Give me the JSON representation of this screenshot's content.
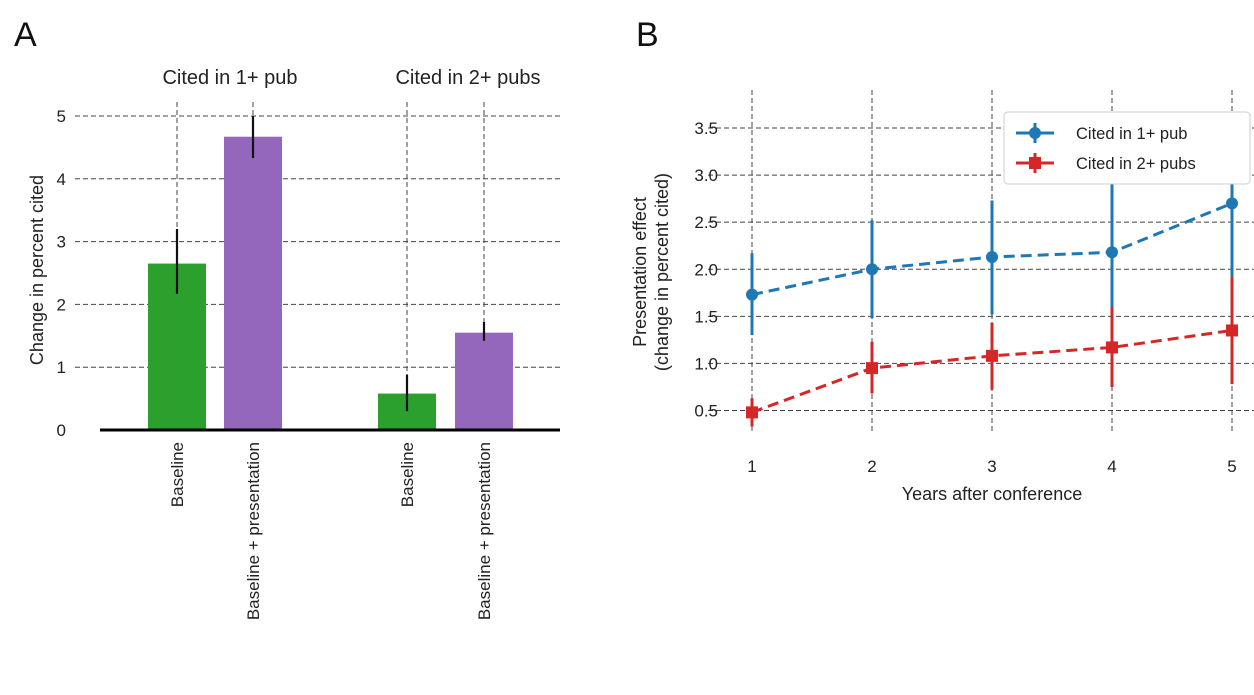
{
  "panel_a": {
    "letter": "A",
    "ylabel": "Change in percent cited",
    "yticks": [
      "0",
      "1",
      "2",
      "3",
      "4",
      "5"
    ]
  },
  "panel_b": {
    "letter": "B",
    "ylabel_line1": "Presentation effect",
    "ylabel_line2": "(change in percent cited)",
    "xlabel": "Years after conference",
    "xticks": [
      "1",
      "2",
      "3",
      "4",
      "5"
    ],
    "yticks": [
      "0.5",
      "1.0",
      "1.5",
      "2.0",
      "2.5",
      "3.0",
      "3.5"
    ]
  },
  "chart_data": [
    {
      "type": "bar",
      "panel": "A",
      "groups": [
        {
          "title": "Cited in 1+ pub",
          "categories": [
            "Baseline",
            "Baseline + presentation"
          ],
          "values": [
            2.65,
            4.67
          ],
          "error_low": [
            2.17,
            4.33
          ],
          "error_high": [
            3.2,
            5.0
          ],
          "colors": [
            "#2ca02c",
            "#9467bd"
          ]
        },
        {
          "title": "Cited in 2+ pubs",
          "categories": [
            "Baseline",
            "Baseline + presentation"
          ],
          "values": [
            0.58,
            1.55
          ],
          "error_low": [
            0.3,
            1.42
          ],
          "error_high": [
            0.88,
            1.72
          ],
          "colors": [
            "#2ca02c",
            "#9467bd"
          ]
        }
      ],
      "ylabel": "Change in percent cited",
      "ylim": [
        0,
        5
      ],
      "grid": true
    },
    {
      "type": "line",
      "panel": "B",
      "x": [
        1,
        2,
        3,
        4,
        5
      ],
      "series": [
        {
          "name": "Cited in 1+ pub",
          "color": "#1f77b4",
          "marker": "circle",
          "values": [
            1.73,
            2.0,
            2.13,
            2.18,
            2.7
          ],
          "error_low": [
            1.3,
            1.48,
            1.52,
            1.5,
            1.92
          ],
          "error_high": [
            2.17,
            2.52,
            2.73,
            2.9,
            3.35
          ]
        },
        {
          "name": "Cited in 2+ pubs",
          "color": "#d62728",
          "marker": "square",
          "values": [
            0.48,
            0.95,
            1.08,
            1.17,
            1.35
          ],
          "error_low": [
            0.33,
            0.68,
            0.72,
            0.75,
            0.78
          ],
          "error_high": [
            0.63,
            1.23,
            1.43,
            1.6,
            1.92
          ]
        }
      ],
      "xlabel": "Years after conference",
      "ylabel": "Presentation effect (change in percent cited)",
      "xlim": [
        0.9,
        5.1
      ],
      "ylim": [
        0.3,
        3.8
      ],
      "grid": true,
      "legend_position": "top-right"
    }
  ]
}
